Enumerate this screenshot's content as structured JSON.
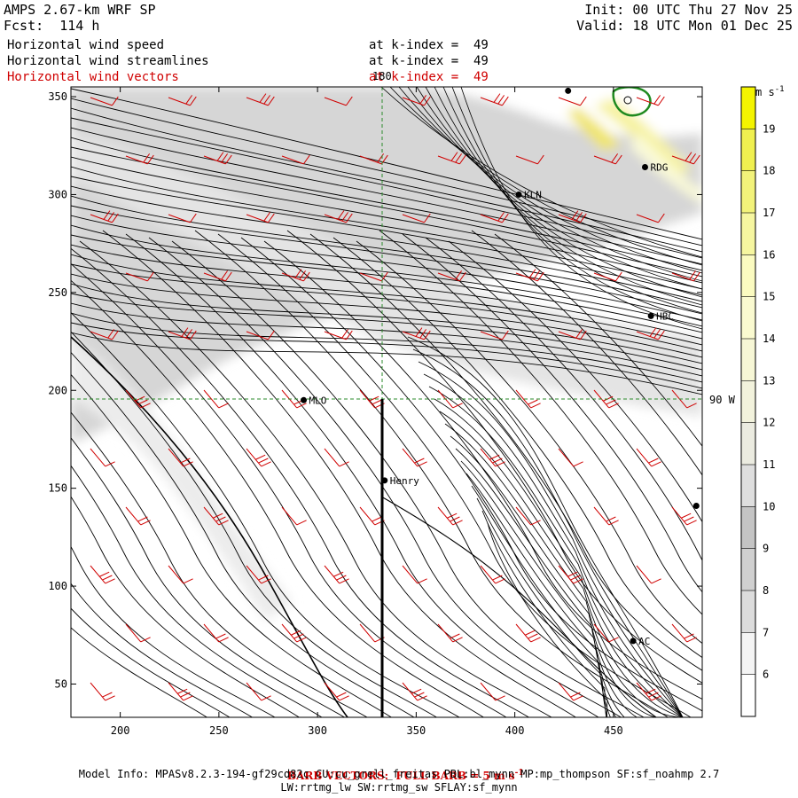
{
  "header": {
    "model_title": "AMPS 2.67-km WRF SP",
    "forecast": "Fcst:  114 h",
    "init": "Init: 00 UTC Thu 27 Nov 25",
    "valid": "Valid: 18 UTC Mon 01 Dec 25",
    "fields": [
      {
        "name": "Horizontal wind speed",
        "level": "at k-index =  49",
        "color": "#000000"
      },
      {
        "name": "Horizontal wind streamlines",
        "level": "at k-index =  49",
        "color": "#000000"
      },
      {
        "name": "Horizontal wind vectors",
        "level": "at k-index =  49",
        "color": "#d00000"
      }
    ]
  },
  "footer": {
    "barb_note": "BARB VECTORS:  FULL BARB = 5 m s",
    "barb_note_sup": "-1",
    "model_info_1": "Model Info: MPASv8.2.3-194-gf29cd82c CU:cu_grell_freitas PBL:bl_mynn MP:mp_thompson SF:sf_noahmp 2.7",
    "model_info_2": "LW:rrtmg_lw SW:rrtmg_sw SFLAY:sf_mynn"
  },
  "colors": {
    "barb": "#d00000",
    "streamline": "#000000",
    "gridline": "#2a8a2a",
    "contour_green": "#1f8a1f"
  },
  "chart_data": {
    "type": "heatmap",
    "description_layers": [
      "wind speed shading",
      "streamlines",
      "wind barbs"
    ],
    "x_ticks": [
      200,
      250,
      300,
      350,
      400,
      450
    ],
    "y_ticks": [
      50,
      100,
      150,
      200,
      250,
      300,
      350
    ],
    "xlim": [
      175,
      495
    ],
    "ylim": [
      33,
      355
    ],
    "grid_lines": [
      {
        "label": "180",
        "axis": "x",
        "value": 334
      },
      {
        "label": "90 W",
        "axis": "y",
        "value": 195
      }
    ],
    "colorbar": {
      "unit": "m s",
      "unit_sup": "-1",
      "ticks": [
        6,
        7,
        8,
        9,
        10,
        11,
        12,
        13,
        14,
        15,
        16,
        17,
        18,
        19
      ],
      "range": [
        5,
        20
      ],
      "colors": [
        "#ffffff",
        "#f4f4f4",
        "#dcdcdc",
        "#d0d0d0",
        "#c4c4c4",
        "#dedede",
        "#ebebe0",
        "#f2f2dc",
        "#f7f7d6",
        "#fafad0",
        "#fbfbc0",
        "#f6f6a0",
        "#f2f27a",
        "#f0f050",
        "#f4f400"
      ]
    },
    "stations": [
      {
        "name": "MLO",
        "x": 293,
        "y": 195
      },
      {
        "name": "Henry",
        "x": 334,
        "y": 154
      },
      {
        "name": "KLN",
        "x": 402,
        "y": 300
      },
      {
        "name": "RDG",
        "x": 466,
        "y": 314
      },
      {
        "name": "HBC",
        "x": 469,
        "y": 238
      },
      {
        "name": "AC",
        "x": 460,
        "y": 72
      },
      {
        "name": "",
        "x": 427,
        "y": 353
      },
      {
        "name": "",
        "x": 492,
        "y": 141
      }
    ],
    "cross_section": {
      "x": 334,
      "y0": 33,
      "y1": 195
    }
  }
}
